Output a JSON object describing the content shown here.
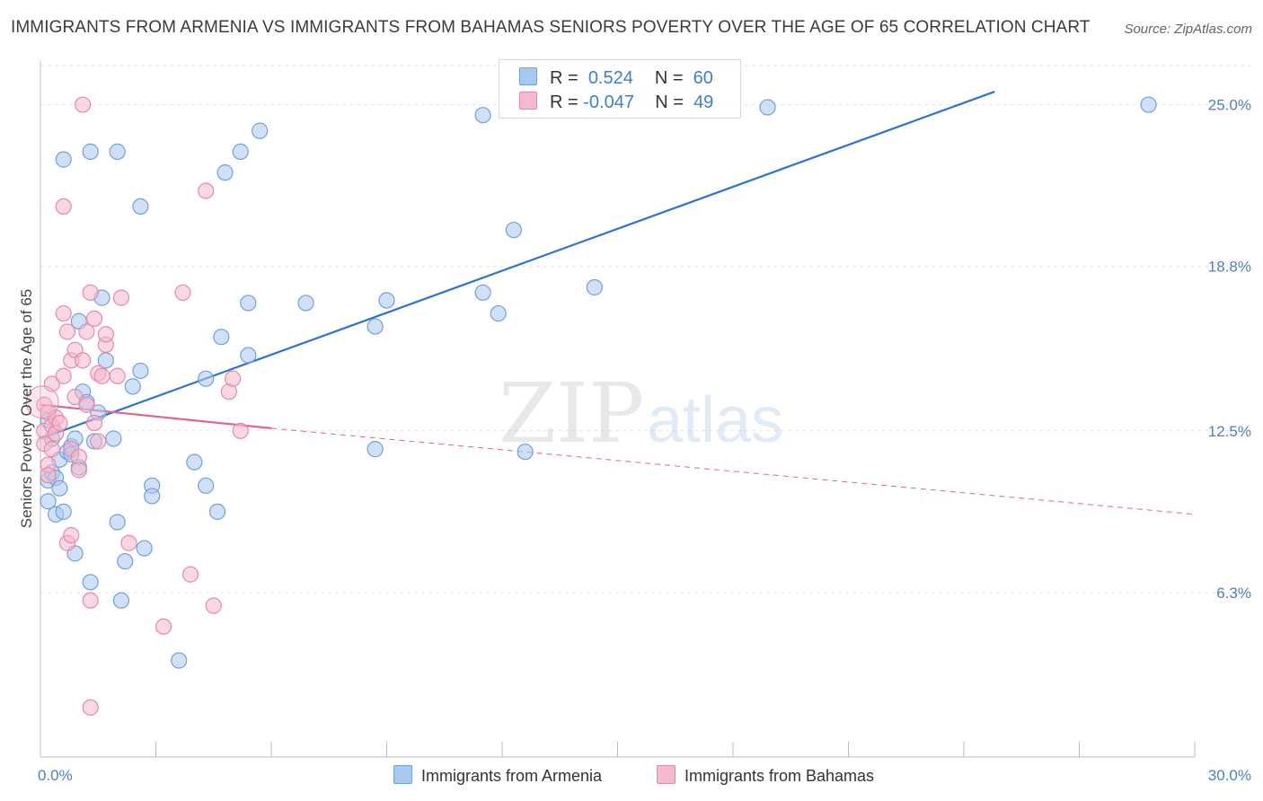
{
  "header": {
    "title": "IMMIGRANTS FROM ARMENIA VS IMMIGRANTS FROM BAHAMAS SENIORS POVERTY OVER THE AGE OF 65 CORRELATION CHART",
    "source": "Source: ZipAtlas.com"
  },
  "watermark": {
    "zip": "ZIP",
    "atlas": "atlas"
  },
  "legend": {
    "rows": [
      {
        "r_label": "R =",
        "r_value": "0.524",
        "n_label": "N =",
        "n_value": "60",
        "color": "#a9c8f0"
      },
      {
        "r_label": "R =",
        "r_value": "-0.047",
        "n_label": "N =",
        "n_value": "49",
        "color": "#f5b8cc"
      }
    ]
  },
  "bottom_legend": {
    "armenia": "Immigrants from Armenia",
    "bahamas": "Immigrants from Bahamas"
  },
  "chart_data": {
    "type": "scatter",
    "title": "IMMIGRANTS FROM ARMENIA VS IMMIGRANTS FROM BAHAMAS SENIORS POVERTY OVER THE AGE OF 65 CORRELATION CHART",
    "xlabel": "",
    "ylabel": "Seniors Poverty Over the Age of 65",
    "xlim": [
      0,
      30
    ],
    "ylim": [
      0,
      26.5
    ],
    "x_tick_labels": [
      {
        "value": 0,
        "label": "0.0%"
      },
      {
        "value": 30,
        "label": "30.0%"
      }
    ],
    "y_ticks": [
      {
        "value": 6.3,
        "label": "6.3%"
      },
      {
        "value": 12.5,
        "label": "12.5%"
      },
      {
        "value": 18.8,
        "label": "18.8%"
      },
      {
        "value": 25.0,
        "label": "25.0%"
      }
    ],
    "series": [
      {
        "name": "Immigrants from Armenia",
        "color": "#6fa0e0",
        "fill": "#a9c8f0",
        "points": [
          [
            0.2,
            12.9
          ],
          [
            0.2,
            10.6
          ],
          [
            0.2,
            9.8
          ],
          [
            0.3,
            12.2
          ],
          [
            0.3,
            10.9
          ],
          [
            0.4,
            10.7
          ],
          [
            0.4,
            9.3
          ],
          [
            0.5,
            11.4
          ],
          [
            0.5,
            10.3
          ],
          [
            0.6,
            9.4
          ],
          [
            0.6,
            22.9
          ],
          [
            0.7,
            11.7
          ],
          [
            0.8,
            11.9
          ],
          [
            0.8,
            11.6
          ],
          [
            0.9,
            12.2
          ],
          [
            0.9,
            7.8
          ],
          [
            1.0,
            16.7
          ],
          [
            1.0,
            11.1
          ],
          [
            1.1,
            14.0
          ],
          [
            1.2,
            13.6
          ],
          [
            1.3,
            6.7
          ],
          [
            1.3,
            23.2
          ],
          [
            1.4,
            12.1
          ],
          [
            1.5,
            13.2
          ],
          [
            1.6,
            17.6
          ],
          [
            1.7,
            15.2
          ],
          [
            1.9,
            12.2
          ],
          [
            2.0,
            9.0
          ],
          [
            2.0,
            23.2
          ],
          [
            2.1,
            6.0
          ],
          [
            2.2,
            7.5
          ],
          [
            2.4,
            14.2
          ],
          [
            2.6,
            14.8
          ],
          [
            2.6,
            21.1
          ],
          [
            2.7,
            8.0
          ],
          [
            2.9,
            10.4
          ],
          [
            2.9,
            10.0
          ],
          [
            3.6,
            3.7
          ],
          [
            4.0,
            11.3
          ],
          [
            4.3,
            14.5
          ],
          [
            4.3,
            10.4
          ],
          [
            4.6,
            9.4
          ],
          [
            4.7,
            16.1
          ],
          [
            4.8,
            22.4
          ],
          [
            5.2,
            23.2
          ],
          [
            5.4,
            15.4
          ],
          [
            5.4,
            17.4
          ],
          [
            5.7,
            24.0
          ],
          [
            6.9,
            17.4
          ],
          [
            8.7,
            16.5
          ],
          [
            9.0,
            17.5
          ],
          [
            8.7,
            11.8
          ],
          [
            11.5,
            17.8
          ],
          [
            11.5,
            24.6
          ],
          [
            11.9,
            17.0
          ],
          [
            12.3,
            20.2
          ],
          [
            12.6,
            11.7
          ],
          [
            14.4,
            18.0
          ],
          [
            18.9,
            24.9
          ],
          [
            28.8,
            25.0
          ]
        ]
      },
      {
        "name": "Immigrants from Bahamas",
        "color": "#e68aa8",
        "fill": "#f5b8cc",
        "points": [
          [
            0.1,
            13.5
          ],
          [
            0.1,
            12.5
          ],
          [
            0.1,
            12.0
          ],
          [
            0.2,
            11.2
          ],
          [
            0.2,
            13.2
          ],
          [
            0.2,
            10.8
          ],
          [
            0.3,
            11.8
          ],
          [
            0.3,
            12.7
          ],
          [
            0.3,
            14.3
          ],
          [
            0.4,
            13.0
          ],
          [
            0.4,
            12.4
          ],
          [
            0.5,
            12.8
          ],
          [
            0.6,
            21.1
          ],
          [
            0.6,
            17.0
          ],
          [
            0.6,
            14.6
          ],
          [
            0.7,
            8.2
          ],
          [
            0.7,
            16.3
          ],
          [
            0.8,
            15.2
          ],
          [
            0.8,
            8.5
          ],
          [
            0.8,
            11.8
          ],
          [
            0.9,
            15.6
          ],
          [
            0.9,
            13.8
          ],
          [
            1.0,
            11.5
          ],
          [
            1.0,
            11.0
          ],
          [
            1.1,
            15.2
          ],
          [
            1.1,
            25.0
          ],
          [
            1.2,
            16.3
          ],
          [
            1.2,
            13.5
          ],
          [
            1.3,
            17.8
          ],
          [
            1.3,
            6.0
          ],
          [
            1.4,
            16.8
          ],
          [
            1.4,
            12.8
          ],
          [
            1.5,
            14.7
          ],
          [
            1.5,
            12.1
          ],
          [
            1.6,
            14.6
          ],
          [
            1.7,
            15.8
          ],
          [
            1.7,
            16.2
          ],
          [
            1.3,
            1.9
          ],
          [
            2.1,
            17.6
          ],
          [
            2.3,
            8.2
          ],
          [
            3.2,
            5.0
          ],
          [
            3.7,
            17.8
          ],
          [
            3.9,
            7.0
          ],
          [
            4.3,
            21.7
          ],
          [
            4.5,
            5.8
          ],
          [
            4.9,
            14.0
          ],
          [
            5.0,
            14.5
          ],
          [
            5.2,
            12.5
          ],
          [
            2.0,
            14.6
          ]
        ]
      }
    ],
    "trend_lines": [
      {
        "series": "Immigrants from Armenia",
        "x": [
          0,
          24.8
        ],
        "y": [
          12.2,
          25.5
        ],
        "style": "solid"
      },
      {
        "series": "Immigrants from Bahamas",
        "x": [
          0,
          6.0
        ],
        "y": [
          13.5,
          12.6
        ],
        "style": "solid"
      },
      {
        "series": "Immigrants from Bahamas",
        "x": [
          6.0,
          30.0
        ],
        "y": [
          12.6,
          9.3
        ],
        "style": "dashed"
      }
    ]
  }
}
